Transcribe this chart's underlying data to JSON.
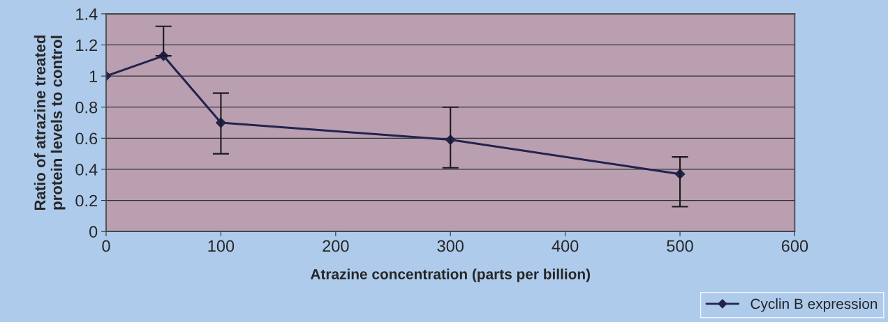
{
  "chart_data": {
    "type": "line",
    "xlabel": "Atrazine concentration (parts per billion)",
    "ylabel": "Ratio of atrazine treated\nprotein levels to control",
    "x": [
      0,
      50,
      100,
      300,
      500
    ],
    "series": [
      {
        "name": "Cyclin B expression",
        "color": "#23234f",
        "values": [
          1.0,
          1.13,
          0.7,
          0.59,
          0.37
        ],
        "errors": [
          null,
          [
            1.13,
            1.32
          ],
          [
            0.5,
            0.89
          ],
          [
            0.41,
            0.8
          ],
          [
            0.16,
            0.48
          ]
        ]
      }
    ],
    "xlim": [
      0,
      600
    ],
    "xticks": [
      0,
      100,
      200,
      300,
      400,
      500,
      600
    ],
    "ylim": [
      0,
      1.4
    ],
    "yticks": [
      0,
      0.2,
      0.4,
      0.6,
      0.8,
      1,
      1.2,
      1.4
    ],
    "grid": "y",
    "legend": "bottom right",
    "marker": "diamond",
    "line_style": "solid"
  }
}
